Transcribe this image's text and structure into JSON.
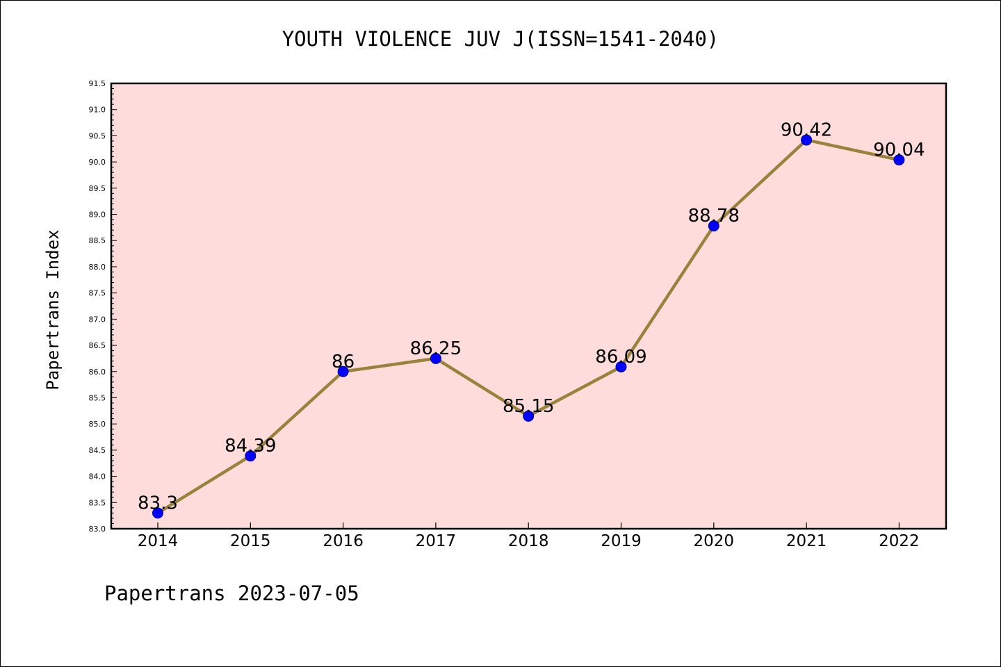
{
  "chart_data": {
    "type": "line",
    "title": "YOUTH VIOLENCE JUV J(ISSN=1541-2040)",
    "ylabel": "Papertrans Index",
    "xlabel": "",
    "footer": "Papertrans 2023-07-05",
    "x": [
      "2014",
      "2015",
      "2016",
      "2017",
      "2018",
      "2019",
      "2020",
      "2021",
      "2022"
    ],
    "values": [
      83.3,
      84.39,
      86,
      86.25,
      85.15,
      86.09,
      88.78,
      90.42,
      90.04
    ],
    "data_labels": [
      "83.3",
      "84.39",
      "86",
      "86.25",
      "85.15",
      "86.09",
      "88.78",
      "90.42",
      "90.04"
    ],
    "ylim": [
      83.0,
      91.5
    ],
    "yticks": [
      "83.0",
      "83.5",
      "84.0",
      "84.5",
      "85.0",
      "85.5",
      "86.0",
      "86.5",
      "87.0",
      "87.5",
      "88.0",
      "88.5",
      "89.0",
      "89.5",
      "90.0",
      "90.5",
      "91.0",
      "91.5"
    ],
    "grid": false,
    "colors": {
      "plot_background": "#ffdcdc",
      "line": "#98823c",
      "marker": "#0000ff"
    }
  }
}
